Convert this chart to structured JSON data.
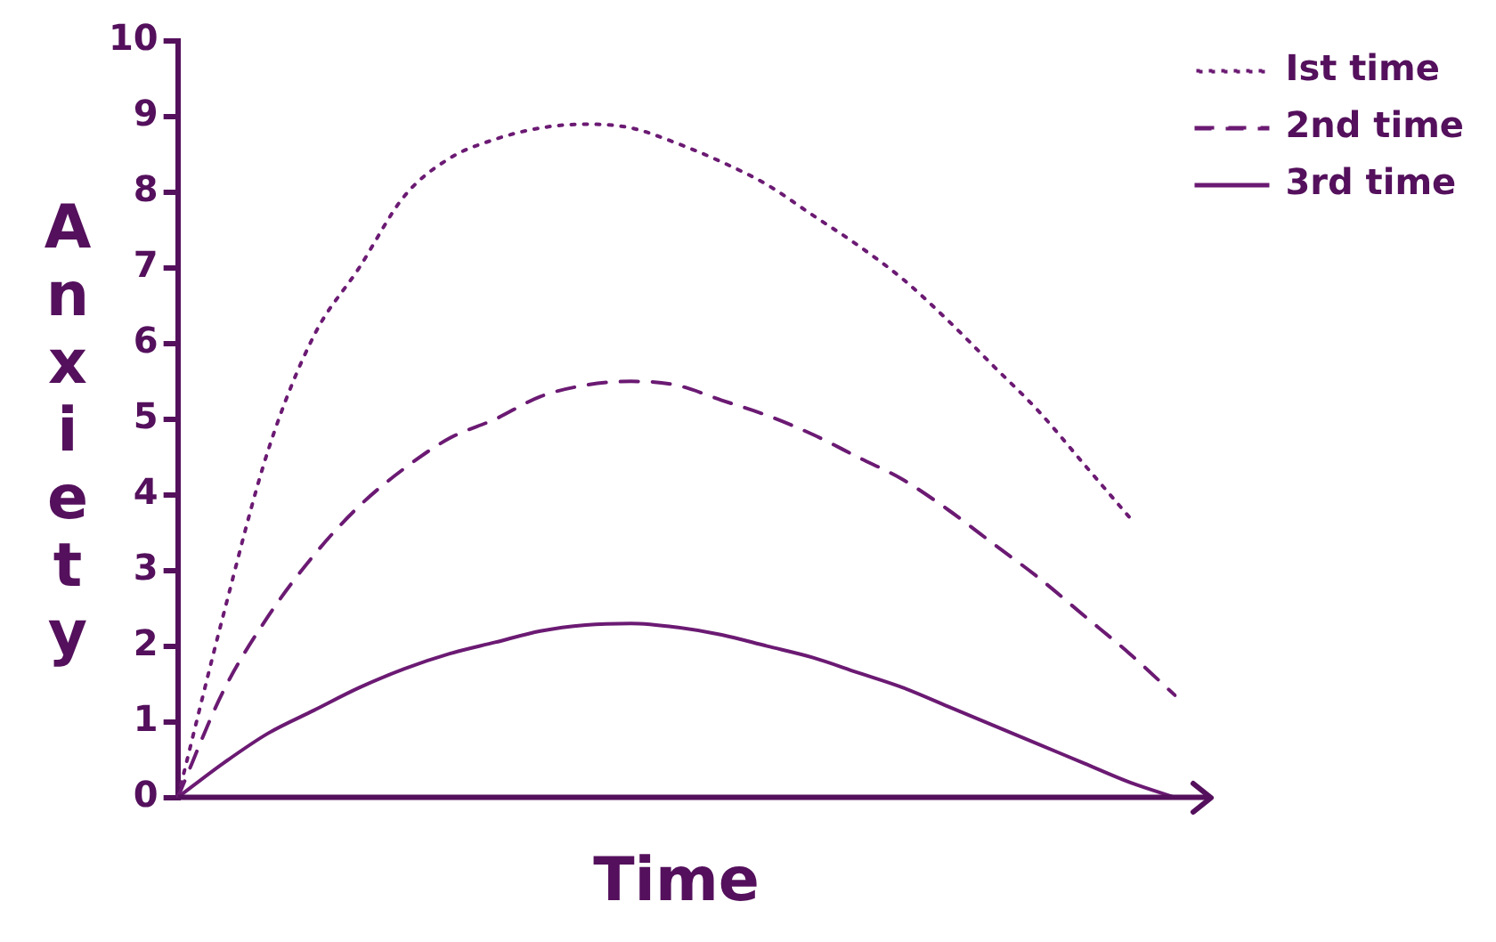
{
  "chart_data": {
    "type": "line",
    "xlabel": "Time",
    "ylabel": "Anxiety",
    "categories": [
      null,
      null,
      null,
      null,
      null,
      null,
      null,
      null,
      null,
      null,
      null,
      null,
      null,
      null,
      null,
      null,
      null,
      null,
      null,
      null,
      null,
      null,
      null
    ],
    "ylim": [
      0,
      10
    ],
    "yticks": [
      0,
      1,
      2,
      3,
      4,
      5,
      6,
      7,
      8,
      9,
      10
    ],
    "grid": false,
    "legend": "top right",
    "marker": "none",
    "series": [
      {
        "name": "Ist time",
        "color": "#6b1a73",
        "line_style": "dotted",
        "values": [
          0,
          2.4,
          4.6,
          6.1,
          7.0,
          7.95,
          8.45,
          8.7,
          8.85,
          8.9,
          8.85,
          8.65,
          8.4,
          8.1,
          7.7,
          7.3,
          6.85,
          6.3,
          5.7,
          5.1,
          4.4,
          3.7,
          null
        ]
      },
      {
        "name": "2nd time",
        "color": "#6b1a73",
        "line_style": "dashed",
        "values": [
          0,
          1.4,
          2.4,
          3.2,
          3.85,
          4.35,
          4.75,
          5.0,
          5.3,
          5.45,
          5.5,
          5.45,
          5.25,
          5.05,
          4.8,
          4.5,
          4.2,
          3.8,
          3.35,
          2.9,
          2.4,
          1.9,
          1.35
        ]
      },
      {
        "name": "3rd time",
        "color": "#6b1a73",
        "line_style": "solid",
        "values": [
          0,
          0.45,
          0.85,
          1.15,
          1.45,
          1.7,
          1.9,
          2.05,
          2.2,
          2.28,
          2.3,
          2.25,
          2.15,
          2.0,
          1.85,
          1.65,
          1.45,
          1.2,
          0.95,
          0.7,
          0.45,
          0.2,
          0
        ]
      }
    ]
  }
}
